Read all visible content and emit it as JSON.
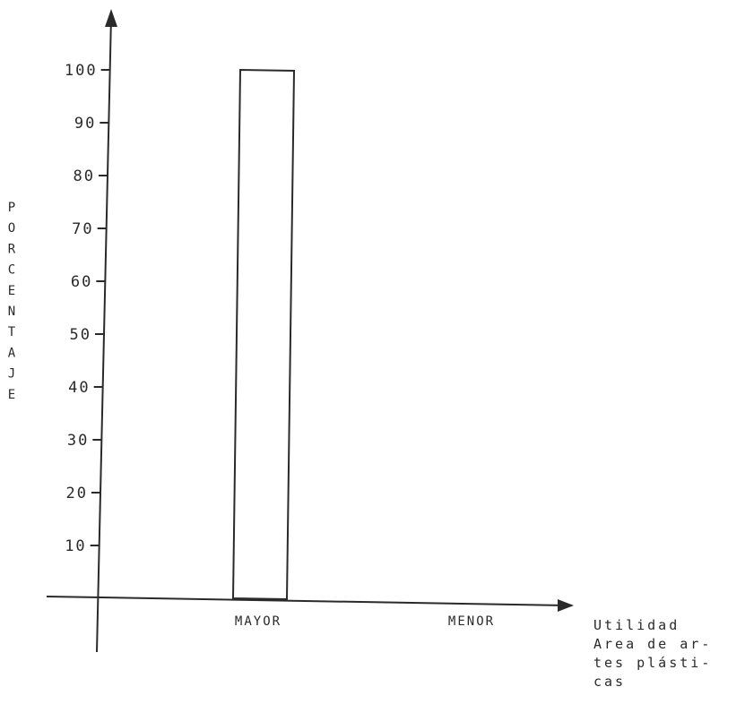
{
  "chart_data": {
    "type": "bar",
    "title": "",
    "categories": [
      "MAYOR",
      "MENOR"
    ],
    "values": [
      100,
      0
    ],
    "yticks": [
      10,
      20,
      30,
      40,
      50,
      60,
      70,
      80,
      90,
      100
    ],
    "ylim": [
      0,
      100
    ],
    "ylabel": "PORCENTAJE",
    "xlabel_lines": [
      "Utilidad",
      "Area de ar-",
      "tes plásti-",
      "cas"
    ],
    "grid": false
  }
}
